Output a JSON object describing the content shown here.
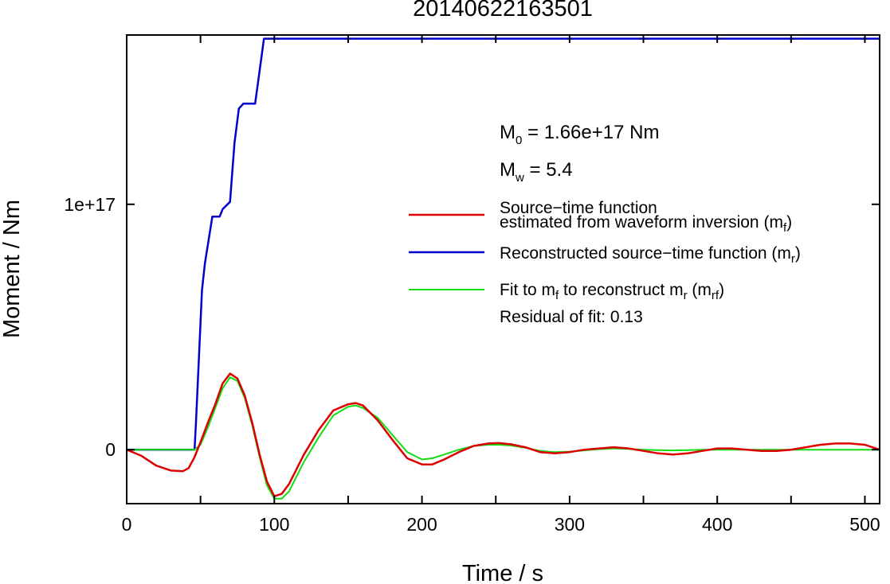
{
  "chart_data": {
    "type": "line",
    "title": "20140622163501",
    "xlabel": "Time / s",
    "ylabel": "Moment / Nm",
    "xlim": [
      0,
      510
    ],
    "ylim": [
      -2.2e+16,
      1.69e+17
    ],
    "x_ticks": [
      {
        "value": 0,
        "label": "0"
      },
      {
        "value": 100,
        "label": "100"
      },
      {
        "value": 200,
        "label": "200"
      },
      {
        "value": 300,
        "label": "300"
      },
      {
        "value": 400,
        "label": "400"
      },
      {
        "value": 500,
        "label": "500"
      }
    ],
    "y_ticks": [
      {
        "value": 0,
        "label": "0"
      },
      {
        "value": 1e+17,
        "label": "1e+17"
      }
    ],
    "grid": false,
    "legend_position": "right, middle",
    "annotations": {
      "m0": {
        "symbol": "M",
        "sub": "0",
        "text": " = 1.66e+17 Nm"
      },
      "mw": {
        "symbol": "M",
        "sub": "w",
        "text": " = 5.4"
      },
      "residual": "Residual of fit: 0.13"
    },
    "legend": [
      {
        "series": "mf",
        "line1": "Source−time function",
        "line2": "estimated from waveform inversion (m",
        "sub": "f",
        "close": ")"
      },
      {
        "series": "mr",
        "text": "Reconstructed source−time function (m",
        "sub": "r",
        "close": ")"
      },
      {
        "series": "mrf",
        "text": "Fit to m",
        "sub1": "f",
        "mid": " to reconstruct m",
        "sub2": "r",
        "mid2": " (m",
        "sub3": "rf",
        "close": ")"
      }
    ],
    "series": [
      {
        "id": "mr",
        "color": "#0000cc",
        "x": [
          0,
          46,
          47,
          51,
          53,
          58,
          63,
          65,
          70,
          73,
          76,
          79,
          83,
          87,
          93,
          510
        ],
        "y": [
          0,
          0,
          1.2e+16,
          6.5e+16,
          7.6e+16,
          9.5e+16,
          9.5e+16,
          9.8e+16,
          1.01e+17,
          1.25e+17,
          1.39e+17,
          1.41e+17,
          1.41e+17,
          1.41e+17,
          1.675e+17,
          1.675e+17
        ]
      },
      {
        "id": "mf",
        "color": "#dd0000",
        "x": [
          0,
          10,
          20,
          30,
          38,
          42,
          46,
          50,
          55,
          60,
          65,
          70,
          75,
          80,
          85,
          90,
          95,
          100,
          105,
          110,
          115,
          120,
          130,
          140,
          150,
          155,
          160,
          170,
          180,
          190,
          200,
          207,
          215,
          225,
          235,
          245,
          252,
          260,
          270,
          280,
          290,
          300,
          310,
          320,
          330,
          340,
          350,
          360,
          370,
          380,
          390,
          400,
          410,
          420,
          430,
          440,
          450,
          460,
          470,
          480,
          490,
          500,
          510
        ],
        "y": [
          0,
          -2500000000000000.0,
          -6500000000000000.0,
          -8500000000000000.0,
          -8800000000000000.0,
          -7500000000000000.0,
          -3000000000000000.0,
          3000000000000000.0,
          1.1e+16,
          1.85e+16,
          2.7e+16,
          3.1e+16,
          2.9e+16,
          2.2e+16,
          1.1e+16,
          -2000000000000000.0,
          -1.3e+16,
          -1.9e+16,
          -1.8e+16,
          -1.4e+16,
          -8000000000000000.0,
          -2000000000000000.0,
          8000000000000000.0,
          1.6e+16,
          1.85e+16,
          1.9e+16,
          1.8e+16,
          1.2e+16,
          4000000000000000.0,
          -3500000000000000.0,
          -6000000000000000.0,
          -6000000000000000.0,
          -4000000000000000.0,
          -1000000000000000.0,
          1500000000000000.0,
          2500000000000000.0,
          2700000000000000.0,
          2200000000000000.0,
          1000000000000000.0,
          -1000000000000000.0,
          -1500000000000000.0,
          -1000000000000000.0,
          0,
          500000000000000.0,
          1000000000000000.0,
          500000000000000.0,
          -500000000000000.0,
          -1500000000000000.0,
          -2000000000000000.0,
          -1500000000000000.0,
          -500000000000000.0,
          500000000000000.0,
          500000000000000.0,
          0,
          -500000000000000.0,
          -500000000000000.0,
          0,
          1000000000000000.0,
          2000000000000000.0,
          2500000000000000.0,
          2500000000000000.0,
          2000000000000000.0,
          0
        ]
      },
      {
        "id": "mrf",
        "color": "#11dd11",
        "x": [
          0,
          10,
          20,
          30,
          38,
          42,
          46,
          50,
          55,
          60,
          65,
          70,
          75,
          80,
          85,
          90,
          95,
          100,
          105,
          110,
          115,
          120,
          130,
          140,
          150,
          155,
          160,
          170,
          180,
          190,
          200,
          207,
          215,
          225,
          235,
          245,
          252,
          260,
          270,
          280,
          290,
          300,
          310,
          320,
          330,
          340,
          350,
          360,
          370,
          380,
          390,
          400,
          410,
          420,
          430,
          440,
          450,
          460,
          470,
          480,
          490,
          500,
          510
        ],
        "y": [
          0,
          0,
          0,
          0,
          0,
          0,
          0,
          2000000000000000.0,
          9000000000000000.0,
          1.7e+16,
          2.5e+16,
          2.95e+16,
          2.8e+16,
          2.1e+16,
          1e+16,
          -3000000000000000.0,
          -1.45e+16,
          -2e+16,
          -2e+16,
          -1.7e+16,
          -1.1e+16,
          -5000000000000000.0,
          5000000000000000.0,
          1.4e+16,
          1.75e+16,
          1.8e+16,
          1.7e+16,
          1.3e+16,
          6000000000000000.0,
          -1000000000000000.0,
          -4000000000000000.0,
          -3500000000000000.0,
          -2000000000000000.0,
          0,
          1500000000000000.0,
          2000000000000000.0,
          2000000000000000.0,
          1700000000000000.0,
          800000000000000.0,
          -500000000000000.0,
          -1000000000000000.0,
          -800000000000000.0,
          -300000000000000.0,
          200000000000000.0,
          500000000000000.0,
          300000000000000.0,
          0,
          -200000000000000.0,
          -300000000000000.0,
          -200000000000000.0,
          0,
          0,
          0,
          0,
          0,
          0,
          0,
          0,
          0,
          0,
          0,
          0,
          0
        ]
      }
    ]
  }
}
